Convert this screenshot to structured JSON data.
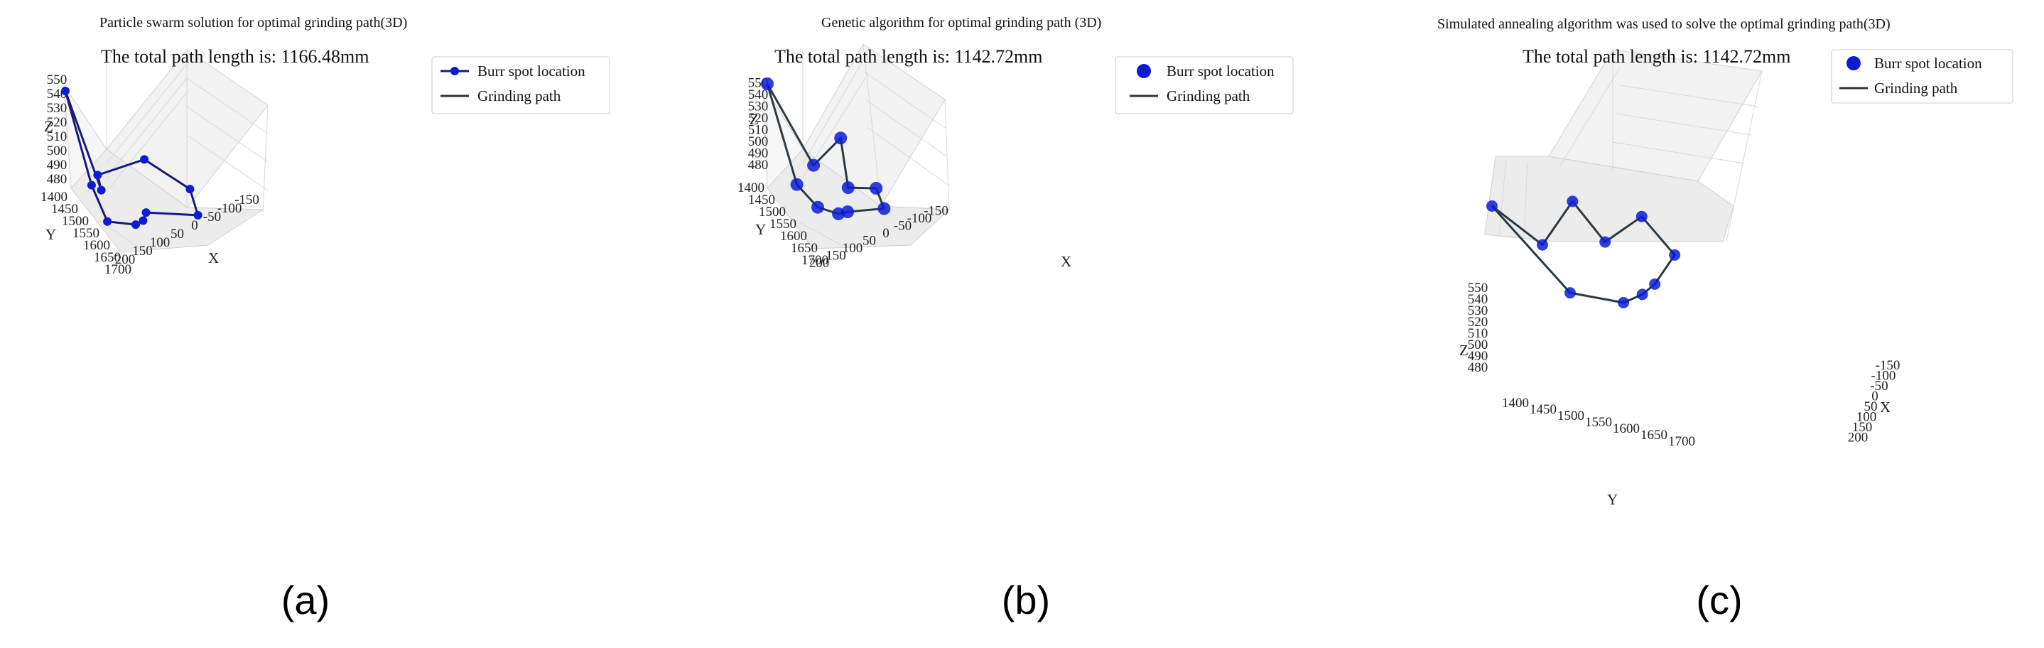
{
  "colors": {
    "marker": "#0d1bd6",
    "path_a": "#1a1a7e",
    "path_bc": "#2b3a44",
    "grid": "#d9d9d9",
    "pane": "#f2f2f2"
  },
  "chart_data": [
    {
      "type": "scatter3d",
      "caption": "(a)",
      "title": "Particle swarm solution for optimal grinding path(3D)",
      "annotation": "The total path length is: 1166.48mm",
      "legend": {
        "position": "top-right",
        "entries": [
          "Burr spot location",
          "Grinding path"
        ]
      },
      "xlabel": "X",
      "ylabel": "Y",
      "zlabel": "Z",
      "xticks": [
        "200",
        "150",
        "100",
        "50",
        "0",
        "-50",
        "-100",
        "-150"
      ],
      "yticks": [
        "1400",
        "1450",
        "1500",
        "1550",
        "1600",
        "1650",
        "1700"
      ],
      "zticks": [
        "480",
        "490",
        "500",
        "510",
        "520",
        "530",
        "540",
        "550"
      ],
      "grid": true,
      "path": [
        {
          "x": 200,
          "y": 1400,
          "z": 550
        },
        {
          "x": 185,
          "y": 1545,
          "z": 498
        },
        {
          "x": 180,
          "y": 1640,
          "z": 482
        },
        {
          "x": 110,
          "y": 1645,
          "z": 480
        },
        {
          "x": 85,
          "y": 1630,
          "z": 481
        },
        {
          "x": 60,
          "y": 1590,
          "z": 482
        },
        {
          "x": -70,
          "y": 1600,
          "z": 480
        },
        {
          "x": -75,
          "y": 1550,
          "z": 492
        },
        {
          "x": -10,
          "y": 1435,
          "z": 500
        },
        {
          "x": 140,
          "y": 1475,
          "z": 497
        },
        {
          "x": 155,
          "y": 1535,
          "z": 493
        },
        {
          "x": 200,
          "y": 1400,
          "z": 550
        }
      ]
    },
    {
      "type": "scatter3d",
      "caption": "(b)",
      "title": "Genetic algorithm for optimal grinding path (3D)",
      "annotation": "The total path length is: 1142.72mm",
      "legend": {
        "position": "top-right",
        "entries": [
          "Burr spot location",
          "Grinding path"
        ]
      },
      "xlabel": "X",
      "ylabel": "Y",
      "zlabel": "Z",
      "xticks": [
        "200",
        "150",
        "100",
        "50",
        "0",
        "-50",
        "-100",
        "-150"
      ],
      "yticks": [
        "1400",
        "1450",
        "1500",
        "1550",
        "1600",
        "1650",
        "1700"
      ],
      "zticks": [
        "480",
        "490",
        "500",
        "510",
        "520",
        "530",
        "540",
        "550"
      ],
      "grid": true,
      "path": [
        {
          "x": 200,
          "y": 1400,
          "z": 550
        },
        {
          "x": 175,
          "y": 1525,
          "z": 491
        },
        {
          "x": 150,
          "y": 1595,
          "z": 482
        },
        {
          "x": 110,
          "y": 1630,
          "z": 481
        },
        {
          "x": 80,
          "y": 1620,
          "z": 481
        },
        {
          "x": -25,
          "y": 1610,
          "z": 481
        },
        {
          "x": -30,
          "y": 1560,
          "z": 488
        },
        {
          "x": 30,
          "y": 1525,
          "z": 485
        },
        {
          "x": 0,
          "y": 1430,
          "z": 506
        },
        {
          "x": 100,
          "y": 1470,
          "z": 496
        },
        {
          "x": 200,
          "y": 1400,
          "z": 550
        }
      ]
    },
    {
      "type": "scatter3d",
      "caption": "(c)",
      "title": "Simulated annealing algorithm was used to solve the optimal grinding path(3D)",
      "annotation": "The total path length is: 1142.72mm",
      "legend": {
        "position": "top-right",
        "entries": [
          "Burr spot location",
          "Grinding path"
        ]
      },
      "xlabel": "X",
      "ylabel": "Y",
      "zlabel": "Z",
      "xticks": [
        "-150",
        "-100",
        "-50",
        "0",
        "50",
        "100",
        "150",
        "200"
      ],
      "yticks": [
        "1400",
        "1450",
        "1500",
        "1550",
        "1600",
        "1650",
        "1700"
      ],
      "zticks": [
        "480",
        "490",
        "500",
        "510",
        "520",
        "530",
        "540",
        "550"
      ],
      "grid": true,
      "path": [
        {
          "x": 200,
          "y": 1400,
          "z": 550
        },
        {
          "x": 120,
          "y": 1480,
          "z": 520
        },
        {
          "x": 40,
          "y": 1520,
          "z": 548
        },
        {
          "x": -60,
          "y": 1560,
          "z": 510
        },
        {
          "x": -110,
          "y": 1620,
          "z": 530
        },
        {
          "x": -130,
          "y": 1680,
          "z": 505
        },
        {
          "x": -50,
          "y": 1660,
          "z": 490
        },
        {
          "x": 10,
          "y": 1650,
          "z": 488
        },
        {
          "x": 40,
          "y": 1620,
          "z": 482
        },
        {
          "x": 60,
          "y": 1520,
          "z": 481
        },
        {
          "x": 200,
          "y": 1400,
          "z": 550
        }
      ]
    }
  ]
}
